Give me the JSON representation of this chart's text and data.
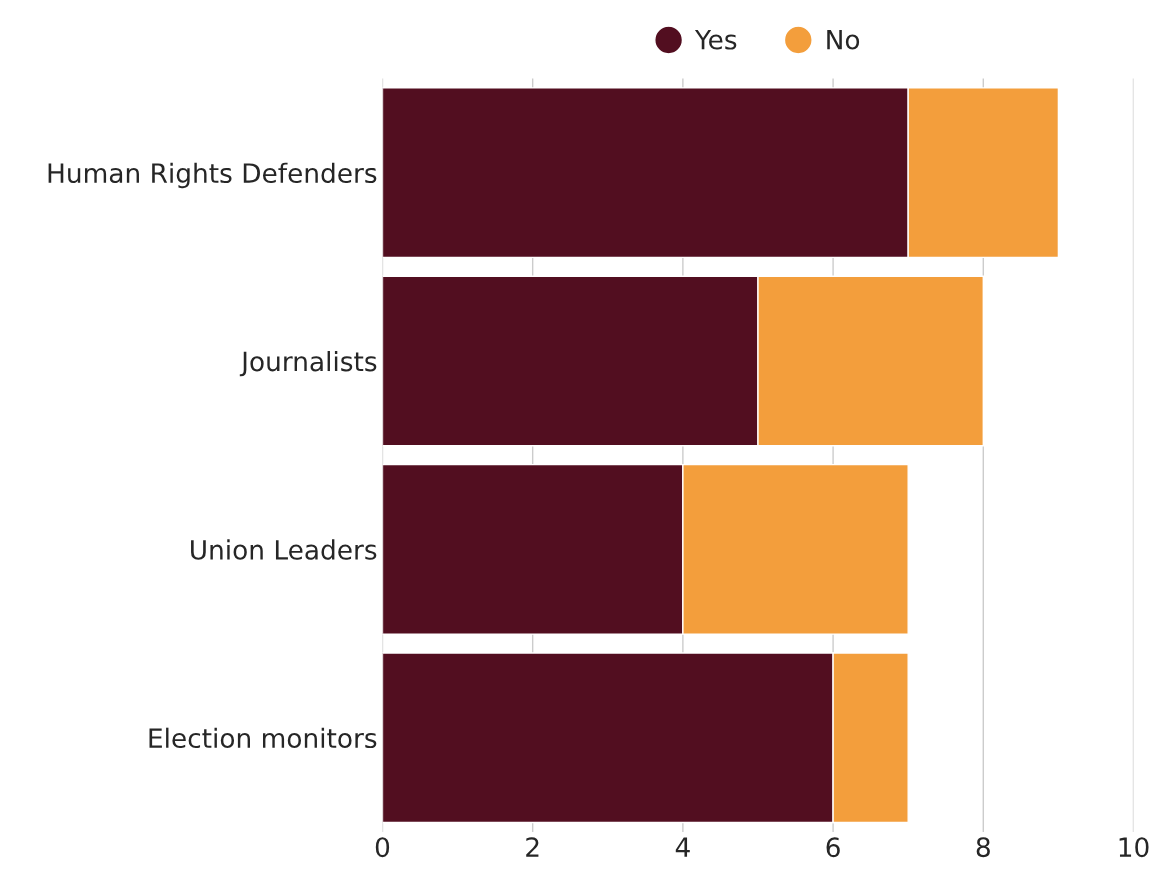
{
  "chart_data": {
    "type": "bar",
    "orientation": "horizontal",
    "stacked": true,
    "categories": [
      "Human Rights Defenders",
      "Journalists",
      "Union Leaders",
      "Election monitors"
    ],
    "series": [
      {
        "name": "Yes",
        "color": "#520e20",
        "values": [
          7,
          5,
          4,
          6
        ]
      },
      {
        "name": "No",
        "color": "#f39e3c",
        "values": [
          2,
          3,
          3,
          1
        ]
      }
    ],
    "xlim": [
      0,
      10
    ],
    "xticks": [
      0,
      2,
      4,
      6,
      8,
      10
    ],
    "grid": "x",
    "legend": "top"
  }
}
